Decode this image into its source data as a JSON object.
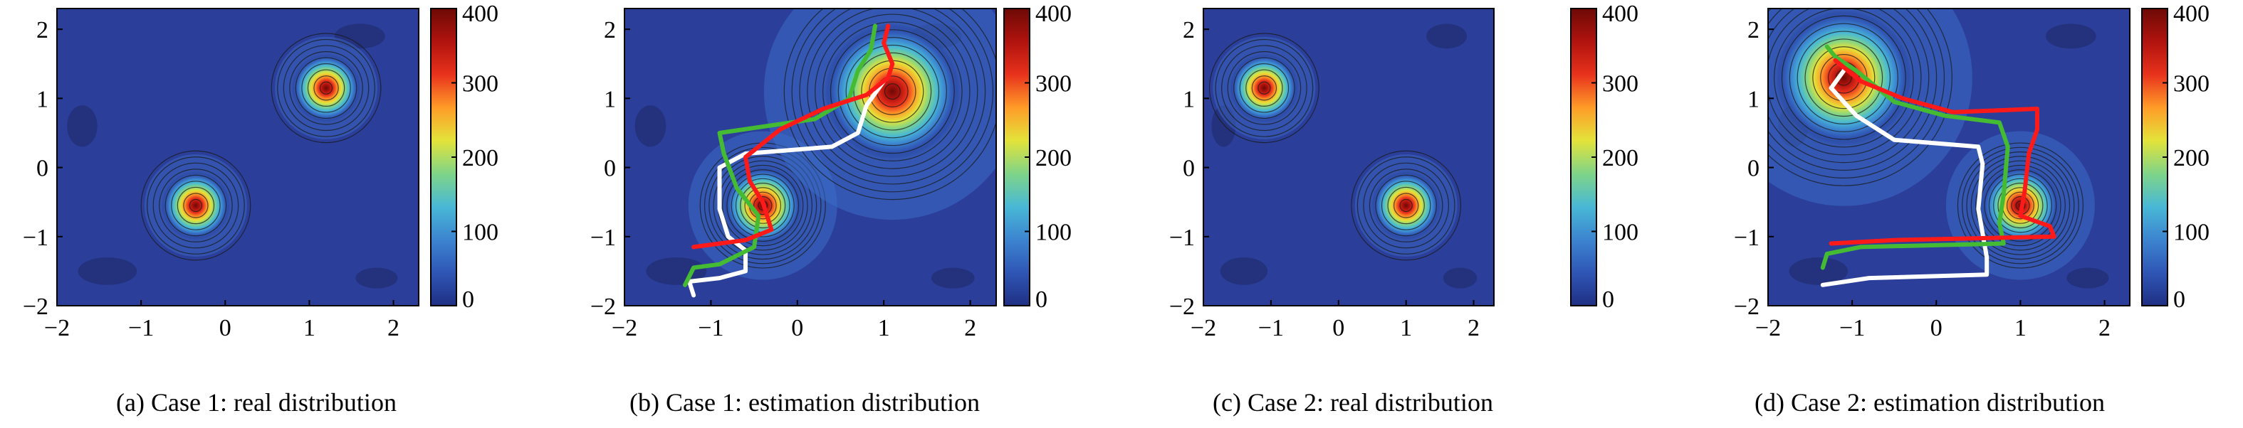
{
  "figure": {
    "colors": {
      "background": "#2b3f9a",
      "cold_patch": "#233077",
      "contour_line": "#1a1a1a",
      "path_red": "#ff1a1a",
      "path_green": "#44bb33",
      "path_white": "#ffffff"
    },
    "colormap": [
      "#1f2f83",
      "#2f56b5",
      "#3c84d0",
      "#48b8d6",
      "#7fd488",
      "#e3e33a",
      "#ff9b28",
      "#e8321c",
      "#b0130e",
      "#6d0a06"
    ],
    "colorbar_ticks": [
      "400",
      "300",
      "200",
      "100",
      "0"
    ],
    "x_ticks": [
      "−2",
      "−1",
      "0",
      "1",
      "2"
    ],
    "y_ticks": [
      "2",
      "1",
      "0",
      "−1",
      "−2"
    ]
  },
  "chart_data": [
    {
      "type": "heatmap",
      "caption": "(a) Case 1: real distribution",
      "xlim": [
        -2,
        2.3
      ],
      "ylim": [
        -2,
        2.3
      ],
      "colorbar_range": [
        0,
        400
      ],
      "sources": [
        {
          "x": -0.35,
          "y": -0.55,
          "peak": 400
        },
        {
          "x": 1.2,
          "y": 1.15,
          "peak": 400
        }
      ],
      "paths": []
    },
    {
      "type": "heatmap",
      "caption": "(b) Case 1: estimation distribution",
      "xlim": [
        -2,
        2.3
      ],
      "ylim": [
        -2,
        2.3
      ],
      "colorbar_range": [
        0,
        400
      ],
      "sources": [
        {
          "x": -0.4,
          "y": -0.55,
          "peak": 400
        },
        {
          "x": 1.1,
          "y": 1.1,
          "peak": 400
        }
      ],
      "paths": [
        {
          "color": "white",
          "points": [
            [
              -1.2,
              -1.85
            ],
            [
              -1.25,
              -1.65
            ],
            [
              -0.9,
              -1.6
            ],
            [
              -0.6,
              -1.5
            ],
            [
              -0.6,
              -1.2
            ],
            [
              -0.8,
              -1.0
            ],
            [
              -0.9,
              -0.6
            ],
            [
              -0.9,
              0.0
            ],
            [
              -0.6,
              0.2
            ],
            [
              0.4,
              0.3
            ],
            [
              0.7,
              0.5
            ],
            [
              0.8,
              0.9
            ],
            [
              1.0,
              1.25
            ]
          ]
        },
        {
          "color": "green",
          "points": [
            [
              -1.3,
              -1.7
            ],
            [
              -1.2,
              -1.45
            ],
            [
              -0.9,
              -1.4
            ],
            [
              -0.5,
              -1.15
            ],
            [
              -0.45,
              -0.7
            ],
            [
              -0.7,
              -0.3
            ],
            [
              -0.85,
              0.2
            ],
            [
              -0.9,
              0.5
            ],
            [
              0.2,
              0.7
            ],
            [
              0.6,
              1.0
            ],
            [
              0.7,
              1.4
            ],
            [
              0.85,
              1.7
            ],
            [
              0.9,
              2.05
            ]
          ]
        },
        {
          "color": "red",
          "points": [
            [
              -1.2,
              -1.15
            ],
            [
              -0.6,
              -1.05
            ],
            [
              -0.3,
              -0.9
            ],
            [
              -0.4,
              -0.5
            ],
            [
              -0.55,
              -0.2
            ],
            [
              -0.6,
              0.15
            ],
            [
              -0.2,
              0.55
            ],
            [
              0.3,
              0.85
            ],
            [
              0.8,
              1.05
            ],
            [
              1.05,
              1.3
            ],
            [
              1.1,
              1.5
            ],
            [
              1.0,
              1.8
            ],
            [
              1.05,
              2.05
            ]
          ]
        }
      ]
    },
    {
      "type": "heatmap",
      "caption": "(c) Case 2: real distribution",
      "xlim": [
        -2,
        2.3
      ],
      "ylim": [
        -2,
        2.3
      ],
      "colorbar_range": [
        0,
        400
      ],
      "sources": [
        {
          "x": -1.1,
          "y": 1.15,
          "peak": 400
        },
        {
          "x": 1.0,
          "y": -0.55,
          "peak": 400
        }
      ],
      "paths": []
    },
    {
      "type": "heatmap",
      "caption": "(d) Case 2: estimation distribution",
      "xlim": [
        -2,
        2.3
      ],
      "ylim": [
        -2,
        2.3
      ],
      "colorbar_range": [
        0,
        400
      ],
      "sources": [
        {
          "x": -1.1,
          "y": 1.3,
          "peak": 400
        },
        {
          "x": 1.0,
          "y": -0.55,
          "peak": 400
        }
      ],
      "paths": [
        {
          "color": "white",
          "points": [
            [
              -1.35,
              -1.7
            ],
            [
              -0.8,
              -1.6
            ],
            [
              0.6,
              -1.55
            ],
            [
              0.6,
              -1.3
            ],
            [
              0.5,
              -0.6
            ],
            [
              0.55,
              0.05
            ],
            [
              0.5,
              0.3
            ],
            [
              -0.5,
              0.4
            ],
            [
              -0.95,
              0.75
            ],
            [
              -1.25,
              1.15
            ],
            [
              -1.1,
              1.4
            ]
          ]
        },
        {
          "color": "green",
          "points": [
            [
              -1.35,
              -1.45
            ],
            [
              -1.3,
              -1.25
            ],
            [
              -0.9,
              -1.15
            ],
            [
              0.8,
              -1.1
            ],
            [
              0.75,
              -0.8
            ],
            [
              0.8,
              -0.4
            ],
            [
              0.85,
              0.3
            ],
            [
              0.75,
              0.65
            ],
            [
              0.1,
              0.75
            ],
            [
              -0.5,
              0.95
            ],
            [
              -0.95,
              1.4
            ],
            [
              -1.2,
              1.6
            ],
            [
              -1.3,
              1.75
            ]
          ]
        },
        {
          "color": "red",
          "points": [
            [
              -1.25,
              -1.1
            ],
            [
              -0.5,
              -1.05
            ],
            [
              1.4,
              -1.0
            ],
            [
              1.35,
              -0.85
            ],
            [
              1.0,
              -0.7
            ],
            [
              1.05,
              -0.35
            ],
            [
              1.1,
              0.2
            ],
            [
              1.2,
              0.55
            ],
            [
              1.2,
              0.85
            ],
            [
              0.2,
              0.8
            ],
            [
              -0.4,
              1.0
            ],
            [
              -0.9,
              1.25
            ],
            [
              -1.2,
              1.55
            ]
          ]
        }
      ]
    }
  ]
}
